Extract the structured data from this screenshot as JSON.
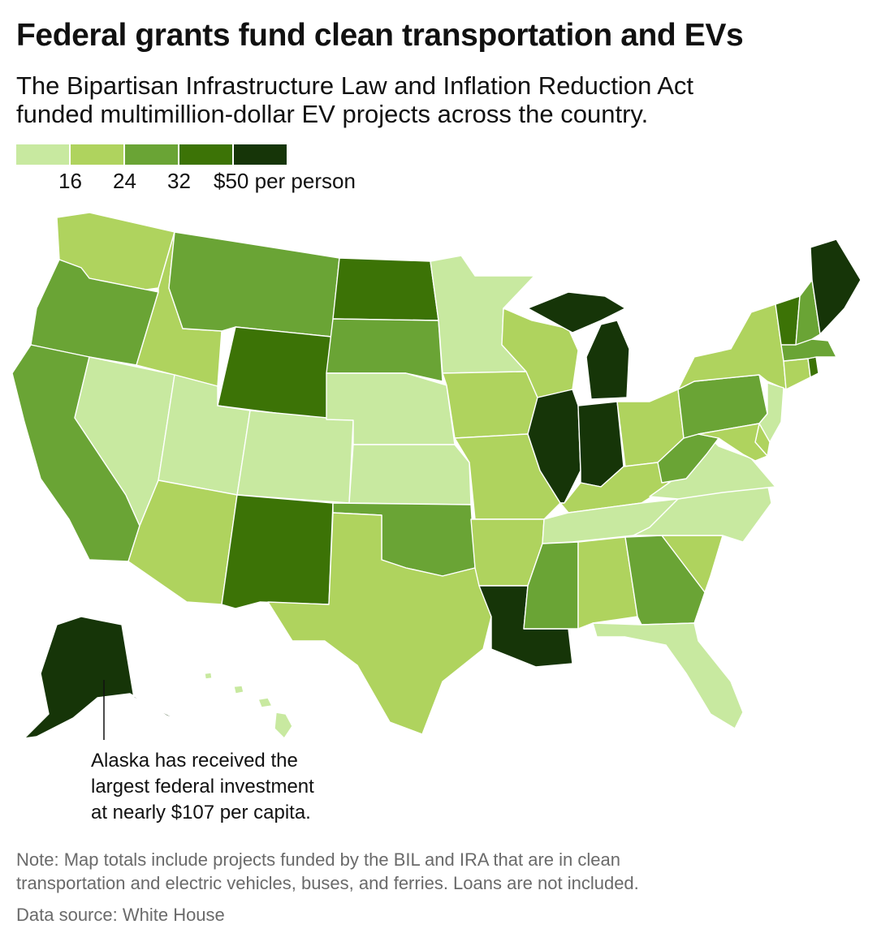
{
  "title": "Federal grants fund clean transportation and EVs",
  "subtitle_lines": [
    "The Bipartisan Infrastructure Law and Inflation Reduction Act",
    "funded multimillion-dollar EV projects across the country."
  ],
  "legend": {
    "colors": [
      "#c8e9a0",
      "#afd35e",
      "#6aa435",
      "#3c7306",
      "#163508"
    ],
    "labels": [
      "16",
      "24",
      "32",
      "$50 per person"
    ]
  },
  "map_data": {
    "unit": "USD per person",
    "bins": [
      {
        "class": 0,
        "range": "< 16"
      },
      {
        "class": 1,
        "range": "16 – 24"
      },
      {
        "class": 2,
        "range": "24 – 32"
      },
      {
        "class": 3,
        "range": "32 – 50"
      },
      {
        "class": 4,
        "range": "> 50"
      }
    ],
    "states": {
      "WA": 1,
      "OR": 2,
      "CA": 2,
      "NV": 0,
      "ID": 1,
      "MT": 2,
      "WY": 3,
      "UT": 0,
      "AZ": 1,
      "CO": 0,
      "NM": 3,
      "ND": 3,
      "SD": 2,
      "NE": 0,
      "KS": 0,
      "OK": 2,
      "TX": 1,
      "MN": 0,
      "IA": 1,
      "MO": 1,
      "AR": 1,
      "LA": 4,
      "WI": 1,
      "IL": 4,
      "MI": 4,
      "IN": 4,
      "OH": 1,
      "KY": 1,
      "TN": 0,
      "MS": 2,
      "AL": 1,
      "GA": 2,
      "FL": 0,
      "SC": 1,
      "NC": 0,
      "VA": 0,
      "WV": 2,
      "PA": 2,
      "NY": 1,
      "VT": 3,
      "NH": 2,
      "ME": 4,
      "MA": 2,
      "RI": 3,
      "CT": 1,
      "NJ": 0,
      "DE": 1,
      "MD": 1,
      "AK": 4,
      "HI": 0
    }
  },
  "annotation": {
    "lines": [
      "Alaska has received the",
      "largest federal investment",
      "at nearly $107 per capita."
    ],
    "value": 107
  },
  "note_lines": [
    "Note: Map totals include projects funded by the BIL and IRA that are in clean",
    "transportation and electric vehicles, buses, and ferries. Loans are not included."
  ],
  "source": "Data source: White House"
}
